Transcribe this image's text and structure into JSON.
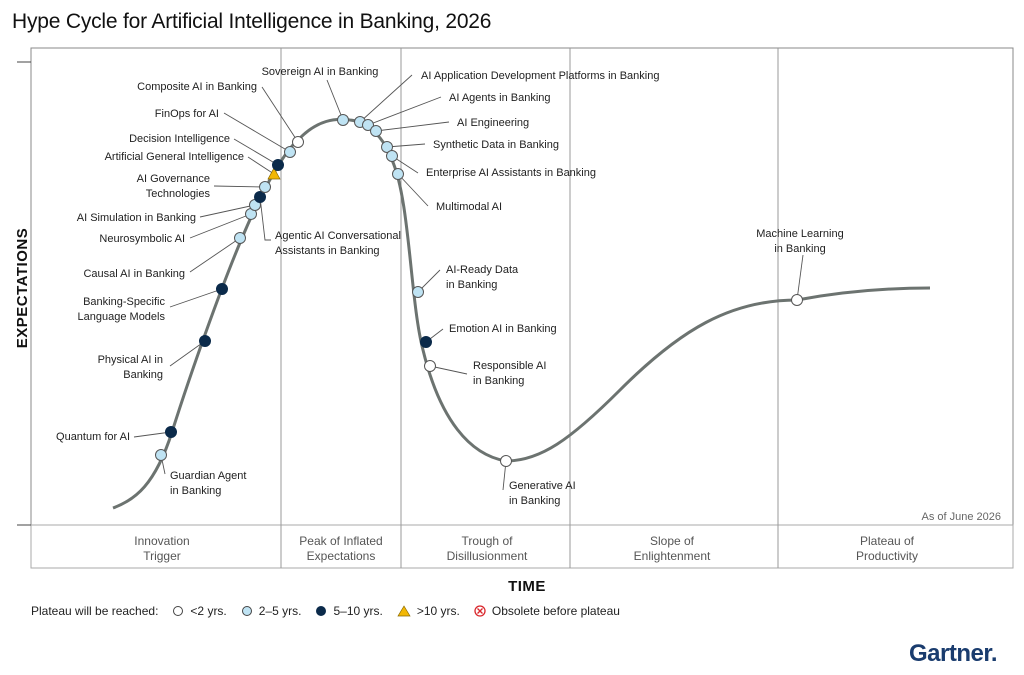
{
  "title": "Hype Cycle for Artificial Intelligence in Banking, 2026",
  "colors": {
    "under_2": "#ffffff",
    "y2_5": "#bfe3f3",
    "y5_10": "#0b2a4a",
    "over_10": "#f2b705",
    "obsolete": "#d9262b",
    "curve": "#6c7370",
    "brand": "#1a3c6e"
  },
  "chart_data": {
    "type": "scatter",
    "title": "Hype Cycle for Artificial Intelligence in Banking, 2026",
    "xlabel": "TIME",
    "ylabel": "EXPECTATIONS",
    "as_of": "As of June 2026",
    "phases": [
      "Innovation Trigger",
      "Peak of Inflated Expectations",
      "Trough of Disillusionment",
      "Slope of Enlightenment",
      "Plateau of Productivity"
    ],
    "legend": {
      "heading": "Plateau will be reached:",
      "items": [
        {
          "key": "under_2",
          "label": "<2 yrs.",
          "shape": "circle"
        },
        {
          "key": "y2_5",
          "label": "2–5 yrs.",
          "shape": "circle"
        },
        {
          "key": "y5_10",
          "label": "5–10 yrs.",
          "shape": "circle"
        },
        {
          "key": "over_10",
          "label": ">10 yrs.",
          "shape": "triangle"
        },
        {
          "key": "obsolete",
          "label": "Obsolete before plateau",
          "shape": "cross"
        }
      ]
    },
    "innovations": [
      {
        "name": "Guardian Agent in Banking",
        "phase": "Innovation Trigger",
        "plateau": "y2_5"
      },
      {
        "name": "Quantum for AI",
        "phase": "Innovation Trigger",
        "plateau": "y5_10"
      },
      {
        "name": "Physical AI in Banking",
        "phase": "Innovation Trigger",
        "plateau": "y5_10"
      },
      {
        "name": "Banking-Specific Language Models",
        "phase": "Innovation Trigger",
        "plateau": "y5_10"
      },
      {
        "name": "Causal AI in Banking",
        "phase": "Innovation Trigger",
        "plateau": "y2_5"
      },
      {
        "name": "Neurosymbolic AI",
        "phase": "Innovation Trigger",
        "plateau": "y2_5"
      },
      {
        "name": "AI Simulation in Banking",
        "phase": "Innovation Trigger",
        "plateau": "y2_5"
      },
      {
        "name": "Agentic AI Conversational Assistants in Banking",
        "phase": "Innovation Trigger",
        "plateau": "y5_10"
      },
      {
        "name": "AI Governance Technologies",
        "phase": "Innovation Trigger",
        "plateau": "y2_5"
      },
      {
        "name": "Artificial General Intelligence",
        "phase": "Innovation Trigger",
        "plateau": "over_10"
      },
      {
        "name": "Decision Intelligence",
        "phase": "Innovation Trigger",
        "plateau": "y5_10"
      },
      {
        "name": "FinOps for AI",
        "phase": "Peak of Inflated Expectations",
        "plateau": "y2_5"
      },
      {
        "name": "Composite AI in Banking",
        "phase": "Peak of Inflated Expectations",
        "plateau": "under_2"
      },
      {
        "name": "Sovereign AI in Banking",
        "phase": "Peak of Inflated Expectations",
        "plateau": "y2_5"
      },
      {
        "name": "AI Application Development Platforms in Banking",
        "phase": "Peak of Inflated Expectations",
        "plateau": "y2_5"
      },
      {
        "name": "AI Agents in Banking",
        "phase": "Peak of Inflated Expectations",
        "plateau": "y2_5"
      },
      {
        "name": "AI Engineering",
        "phase": "Peak of Inflated Expectations",
        "plateau": "y2_5"
      },
      {
        "name": "Synthetic Data in Banking",
        "phase": "Peak of Inflated Expectations",
        "plateau": "y2_5"
      },
      {
        "name": "Enterprise AI Assistants in Banking",
        "phase": "Peak of Inflated Expectations",
        "plateau": "y2_5"
      },
      {
        "name": "Multimodal AI",
        "phase": "Peak of Inflated Expectations",
        "plateau": "y2_5"
      },
      {
        "name": "AI-Ready Data in Banking",
        "phase": "Trough of Disillusionment",
        "plateau": "y2_5"
      },
      {
        "name": "Emotion AI in Banking",
        "phase": "Trough of Disillusionment",
        "plateau": "y5_10"
      },
      {
        "name": "Responsible AI in Banking",
        "phase": "Trough of Disillusionment",
        "plateau": "under_2"
      },
      {
        "name": "Generative AI in Banking",
        "phase": "Trough of Disillusionment",
        "plateau": "under_2"
      },
      {
        "name": "Machine Learning in Banking",
        "phase": "Slope of Enlightenment",
        "plateau": "under_2"
      }
    ]
  },
  "brand": "Gartner"
}
